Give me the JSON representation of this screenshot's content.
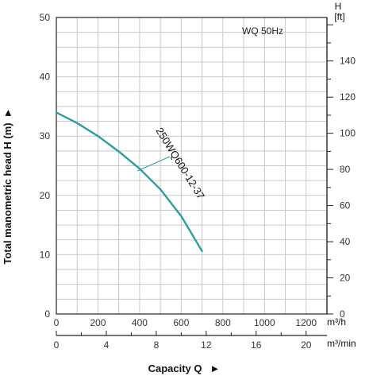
{
  "chart_data": {
    "type": "line",
    "title": "WQ 50Hz",
    "ylabel": "Total manometric head H (m)",
    "ylabel_arrow": "►",
    "xlabel": "Capacity Q",
    "xlabel_arrow": "►",
    "ylim": [
      0,
      50
    ],
    "y_ticks": [
      0,
      10,
      20,
      30,
      40,
      50
    ],
    "x_m3h": {
      "unit": "m³/h",
      "range": [
        0,
        1300
      ],
      "ticks": [
        0,
        200,
        400,
        600,
        800,
        1000,
        1200
      ]
    },
    "x_m3min": {
      "unit": "m³/min",
      "ticks": [
        0,
        4,
        8,
        12,
        16,
        20
      ]
    },
    "h_ft": {
      "unit_line1": "H",
      "unit_line2": "[ft]",
      "ticks": [
        0,
        20,
        40,
        60,
        80,
        100,
        120,
        140
      ]
    },
    "series": [
      {
        "name": "250WQ600-12-37",
        "color": "#2e9e9a",
        "x": [
          0,
          100,
          200,
          300,
          400,
          500,
          600,
          700
        ],
        "y": [
          34.0,
          32.2,
          30.0,
          27.4,
          24.5,
          21.0,
          16.5,
          10.6
        ]
      }
    ],
    "grid": true
  }
}
